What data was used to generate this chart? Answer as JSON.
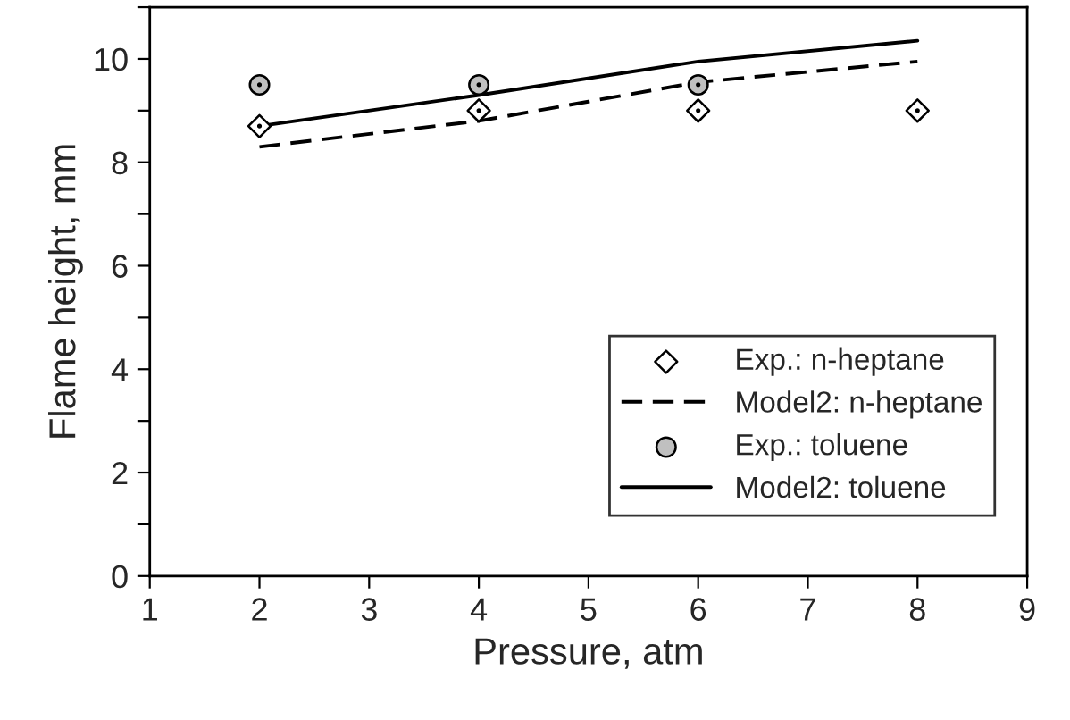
{
  "chart_data": {
    "type": "line",
    "xlabel": "Pressure, atm",
    "ylabel": "Flame height, mm",
    "xlim": [
      1,
      9
    ],
    "xticks": [
      1,
      2,
      3,
      4,
      5,
      6,
      7,
      8,
      9
    ],
    "ylim": [
      0,
      11
    ],
    "yticks": [
      0,
      {
        "value": 1,
        "label": null
      },
      2,
      {
        "value": 3,
        "label": null
      },
      4,
      {
        "value": 5,
        "label": null
      },
      6,
      {
        "value": 7,
        "label": null
      },
      8,
      {
        "value": 9,
        "label": null
      },
      10,
      {
        "value": 11,
        "label": null
      }
    ],
    "grid": false,
    "legend": "lower right",
    "series": [
      {
        "name": "Exp.: n-heptane",
        "type": "scatter",
        "marker": "diamond",
        "color": "#ffffff",
        "x": [
          2,
          4,
          6,
          8
        ],
        "values": [
          8.7,
          9.0,
          9.0,
          9.0
        ]
      },
      {
        "name": "Model2: n-heptane",
        "line_style": "dashed",
        "color": "#000000",
        "x": [
          2,
          4,
          6,
          8
        ],
        "values": [
          8.3,
          8.8,
          9.55,
          9.95
        ]
      },
      {
        "name": "Exp.: toluene",
        "type": "scatter",
        "marker": "circle",
        "color": "#c0c0c0",
        "x": [
          2,
          4,
          6
        ],
        "values": [
          9.5,
          9.5,
          9.5
        ]
      },
      {
        "name": "Model2: toluene",
        "line_style": "solid",
        "color": "#000000",
        "x": [
          2,
          4,
          6,
          8
        ],
        "values": [
          8.7,
          9.3,
          9.95,
          10.35
        ]
      }
    ]
  }
}
